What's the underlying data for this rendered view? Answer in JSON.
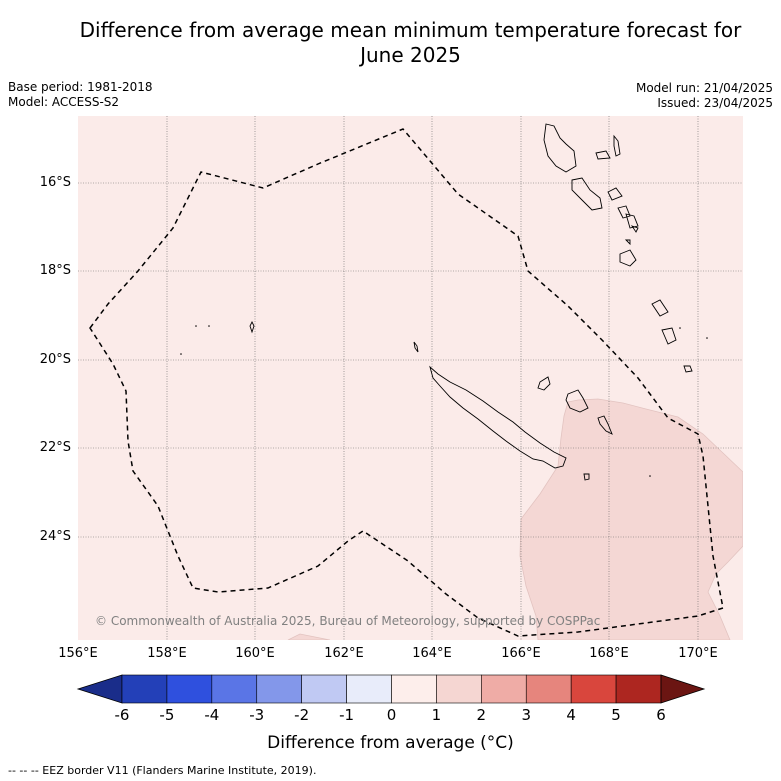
{
  "title_line1": "Difference from average mean minimum temperature forecast for",
  "title_line2": "June 2025",
  "base_period": "Base period: 1981-2018",
  "model": "Model: ACCESS-S2",
  "model_run": "Model run: 21/04/2025",
  "issued": "Issued: 23/04/2025",
  "lat_labels": [
    "16°S",
    "18°S",
    "20°S",
    "22°S",
    "24°S"
  ],
  "lon_labels": [
    "156°E",
    "158°E",
    "160°E",
    "162°E",
    "164°E",
    "166°E",
    "168°E",
    "170°E"
  ],
  "colorbar": {
    "ticks": [
      "-6",
      "-5",
      "-4",
      "-3",
      "-2",
      "-1",
      "0",
      "1",
      "2",
      "3",
      "4",
      "5",
      "6"
    ],
    "colors": [
      "#1a2d8a",
      "#2340b8",
      "#2f50de",
      "#5a75e6",
      "#8397ea",
      "#c0c9f3",
      "#e8ecfa",
      "#fdeeeb",
      "#f5d6d2",
      "#efaca6",
      "#e6857d",
      "#d9463d",
      "#ad2620",
      "#6b1512"
    ],
    "title": "Difference from average (°C)"
  },
  "map_colors": {
    "background": "#fbebe9",
    "warm_region": "#f4d7d4",
    "border": "#000000",
    "grid": "#666666"
  },
  "copyright": "© Commonwealth of Australia 2025, Bureau of Meteorology, supported by COSPPac",
  "footer": "-- -- -- EEZ border V11 (Flanders Marine Institute, 2019)."
}
